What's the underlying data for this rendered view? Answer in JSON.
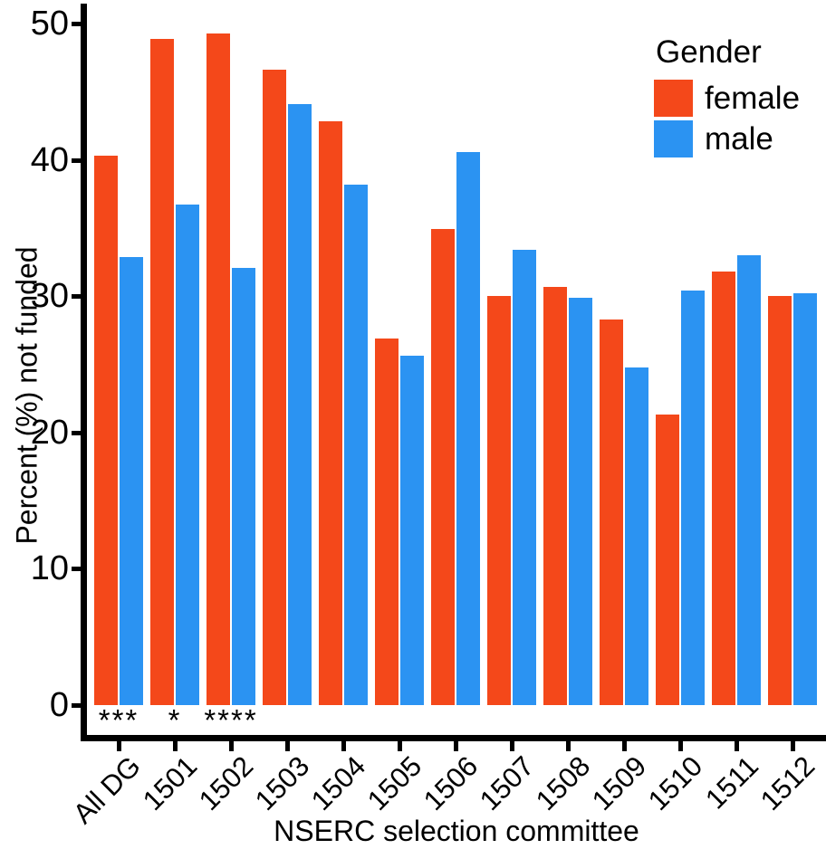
{
  "chart_data": {
    "type": "bar",
    "title": "",
    "xlabel": "NSERC selection committee",
    "ylabel": "Percent (%) not funded",
    "ylim": [
      0,
      50
    ],
    "yticks": [
      0,
      10,
      20,
      30,
      40,
      50
    ],
    "grid": false,
    "legend_position": "top-right",
    "categories": [
      "All DG",
      "1501",
      "1502",
      "1503",
      "1504",
      "1505",
      "1506",
      "1507",
      "1508",
      "1509",
      "1510",
      "1511",
      "1512"
    ],
    "series": [
      {
        "name": "female",
        "color": "#F4481A",
        "values": [
          40.3,
          48.9,
          49.3,
          46.6,
          42.8,
          26.9,
          34.9,
          30.0,
          30.7,
          28.3,
          21.3,
          31.8,
          30.0
        ]
      },
      {
        "name": "male",
        "color": "#2B93F2",
        "values": [
          32.9,
          36.7,
          32.1,
          44.1,
          38.2,
          25.6,
          40.6,
          33.4,
          29.9,
          24.8,
          30.4,
          33.0,
          30.2
        ]
      }
    ],
    "significance_annotations": [
      {
        "category": "All DG",
        "label": "***"
      },
      {
        "category": "1501",
        "label": "*"
      },
      {
        "category": "1502",
        "label": "****"
      }
    ]
  },
  "legend": {
    "title": "Gender",
    "entries": [
      "female",
      "male"
    ]
  },
  "axis_color": "#000000",
  "background_color": "#ffffff"
}
